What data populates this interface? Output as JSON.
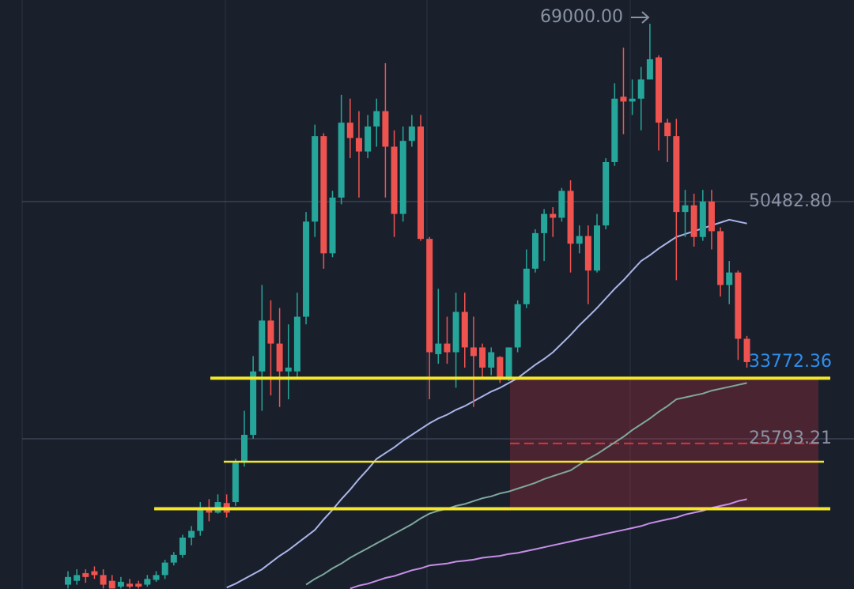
{
  "chart_data": {
    "type": "candlestick",
    "ylim": [
      10150,
      71470
    ],
    "yticks": [
      {
        "value": 50482.8,
        "label": "50482.80"
      },
      {
        "value": 25793.21,
        "label": "25793.21"
      }
    ],
    "grid": true,
    "up_color": "#26a69a",
    "down_color": "#ef5350",
    "ohlc": [
      [
        10600,
        12000,
        10200,
        11400
      ],
      [
        11000,
        12200,
        10600,
        11600
      ],
      [
        11800,
        12200,
        10800,
        11400
      ],
      [
        12000,
        12500,
        11200,
        11600
      ],
      [
        11600,
        12200,
        10200,
        10600
      ],
      [
        11000,
        11600,
        10200,
        10200
      ],
      [
        10400,
        11400,
        10200,
        10900
      ],
      [
        10700,
        11200,
        10200,
        10400
      ],
      [
        10700,
        11000,
        10200,
        10400
      ],
      [
        10600,
        11600,
        10400,
        11200
      ],
      [
        11100,
        12000,
        10900,
        11600
      ],
      [
        11600,
        13200,
        11200,
        12900
      ],
      [
        12900,
        14000,
        12600,
        13700
      ],
      [
        13700,
        15800,
        13400,
        15500
      ],
      [
        15500,
        16700,
        14700,
        16200
      ],
      [
        16200,
        19200,
        15700,
        18400
      ],
      [
        18400,
        19500,
        17200,
        18100
      ],
      [
        18100,
        20000,
        18000,
        19200
      ],
      [
        19100,
        20000,
        17600,
        18100
      ],
      [
        19200,
        23700,
        18800,
        23300
      ],
      [
        23300,
        28700,
        22900,
        26200
      ],
      [
        26200,
        34400,
        25800,
        32800
      ],
      [
        32800,
        41800,
        28700,
        38100
      ],
      [
        38100,
        40200,
        30300,
        35700
      ],
      [
        35700,
        39400,
        29100,
        32800
      ],
      [
        32800,
        37700,
        29900,
        33200
      ],
      [
        32800,
        41000,
        32100,
        38500
      ],
      [
        38500,
        49400,
        37700,
        48400
      ],
      [
        48400,
        58500,
        46800,
        57300
      ],
      [
        57300,
        57600,
        43500,
        45100
      ],
      [
        45100,
        51600,
        44700,
        50900
      ],
      [
        50900,
        61600,
        50200,
        58700
      ],
      [
        58700,
        61200,
        55000,
        57100
      ],
      [
        57100,
        59900,
        50900,
        55700
      ],
      [
        55700,
        59500,
        55000,
        58300
      ],
      [
        58300,
        61200,
        56200,
        59900
      ],
      [
        59900,
        64900,
        50900,
        56200
      ],
      [
        56200,
        57900,
        46800,
        49200
      ],
      [
        49200,
        58300,
        48400,
        56800
      ],
      [
        56800,
        59500,
        56200,
        58300
      ],
      [
        58300,
        59500,
        46400,
        46600
      ],
      [
        46600,
        46800,
        29900,
        34800
      ],
      [
        34600,
        41400,
        33600,
        35700
      ],
      [
        35700,
        38500,
        33600,
        34800
      ],
      [
        34800,
        41000,
        31100,
        39000
      ],
      [
        39000,
        41000,
        33200,
        35300
      ],
      [
        35300,
        38500,
        29100,
        34400
      ],
      [
        35300,
        35700,
        32000,
        33200
      ],
      [
        33200,
        35300,
        32400,
        34800
      ],
      [
        34300,
        34400,
        31600,
        32000
      ],
      [
        32000,
        35300,
        31800,
        35300
      ],
      [
        35300,
        40200,
        34800,
        39800
      ],
      [
        39800,
        45500,
        39400,
        43500
      ],
      [
        43500,
        47600,
        43100,
        47200
      ],
      [
        47200,
        49700,
        44300,
        49200
      ],
      [
        49200,
        49900,
        46800,
        48800
      ],
      [
        48800,
        51900,
        48400,
        51600
      ],
      [
        51600,
        52700,
        43100,
        46100
      ],
      [
        46100,
        48000,
        45100,
        46900
      ],
      [
        46900,
        48000,
        39800,
        43300
      ],
      [
        43300,
        49200,
        43100,
        48000
      ],
      [
        48000,
        55000,
        47600,
        54600
      ],
      [
        54600,
        62800,
        54200,
        61200
      ],
      [
        61400,
        66500,
        57500,
        60900
      ],
      [
        60900,
        63200,
        59500,
        61200
      ],
      [
        61200,
        64500,
        57900,
        63200
      ],
      [
        63200,
        69000,
        63200,
        65300
      ],
      [
        65500,
        65700,
        55800,
        58700
      ],
      [
        58700,
        59100,
        54600,
        57300
      ],
      [
        57300,
        59100,
        42300,
        49400
      ],
      [
        49400,
        51700,
        46800,
        50100
      ],
      [
        50100,
        51300,
        45800,
        46800
      ],
      [
        46800,
        51700,
        46400,
        50500
      ],
      [
        50500,
        51700,
        45500,
        47400
      ],
      [
        47400,
        47800,
        40600,
        41800
      ],
      [
        41800,
        44300,
        39800,
        43100
      ],
      [
        43100,
        43300,
        34000,
        36200
      ],
      [
        36200,
        36500,
        33200,
        33772.36
      ]
    ],
    "moving_averages": [
      {
        "color": "#aab4e8",
        "values": [
          null,
          null,
          null,
          null,
          null,
          null,
          null,
          null,
          null,
          null,
          null,
          null,
          null,
          null,
          null,
          null,
          null,
          null,
          10300,
          10700,
          11200,
          11700,
          12200,
          12900,
          13600,
          14200,
          14900,
          15600,
          16300,
          17400,
          18400,
          19500,
          20500,
          21600,
          22600,
          23700,
          24300,
          24900,
          25600,
          26200,
          26800,
          27400,
          27900,
          28300,
          28800,
          29200,
          29700,
          30200,
          30700,
          31100,
          31600,
          32100,
          32800,
          33500,
          34100,
          34800,
          35700,
          36600,
          37600,
          38500,
          39400,
          40400,
          41400,
          42300,
          43300,
          44300,
          44900,
          45600,
          46200,
          46800,
          47100,
          47400,
          47700,
          48000,
          48300,
          48600,
          48400,
          48200
        ]
      },
      {
        "color": "#7fa89c",
        "values": [
          null,
          null,
          null,
          null,
          null,
          null,
          null,
          null,
          null,
          null,
          null,
          null,
          null,
          null,
          null,
          null,
          null,
          null,
          null,
          null,
          null,
          null,
          null,
          null,
          null,
          null,
          null,
          10600,
          11200,
          11700,
          12300,
          12800,
          13400,
          13900,
          14400,
          14900,
          15400,
          15900,
          16400,
          16900,
          17500,
          18000,
          18300,
          18500,
          18800,
          19000,
          19300,
          19600,
          19800,
          20100,
          20300,
          20600,
          20900,
          21200,
          21600,
          21900,
          22200,
          22500,
          23100,
          23700,
          24200,
          24800,
          25400,
          26000,
          26700,
          27300,
          27900,
          28600,
          29200,
          29900,
          30100,
          30300,
          30500,
          30800,
          31000,
          31200,
          31400,
          31600
        ]
      },
      {
        "color": "#c68ee8",
        "values": [
          null,
          null,
          null,
          null,
          null,
          null,
          null,
          null,
          null,
          null,
          null,
          null,
          null,
          null,
          null,
          null,
          null,
          null,
          null,
          null,
          null,
          null,
          null,
          null,
          null,
          null,
          null,
          null,
          null,
          null,
          null,
          null,
          10200,
          10500,
          10700,
          11000,
          11300,
          11500,
          11800,
          12100,
          12300,
          12600,
          12700,
          12800,
          13000,
          13100,
          13200,
          13400,
          13500,
          13600,
          13800,
          13900,
          14100,
          14300,
          14500,
          14700,
          14900,
          15100,
          15300,
          15500,
          15700,
          15900,
          16100,
          16300,
          16500,
          16700,
          17000,
          17200,
          17400,
          17600,
          17900,
          18100,
          18300,
          18600,
          18800,
          19000,
          19300,
          19500
        ]
      }
    ],
    "levels": [
      {
        "value": 32100,
        "color": "#f5e62a"
      },
      {
        "value": 23400,
        "color": "#f5e62a"
      },
      {
        "value": 18500,
        "color": "#f5e62a"
      }
    ],
    "zone": {
      "top": 32000,
      "bottom": 18400,
      "mid": 25300,
      "color": "#e03040"
    },
    "high_label": {
      "value": 69000,
      "label": "69000.00"
    },
    "last_price": {
      "value": 33772.36,
      "label": "33772.36",
      "color": "#2f8fef"
    }
  }
}
